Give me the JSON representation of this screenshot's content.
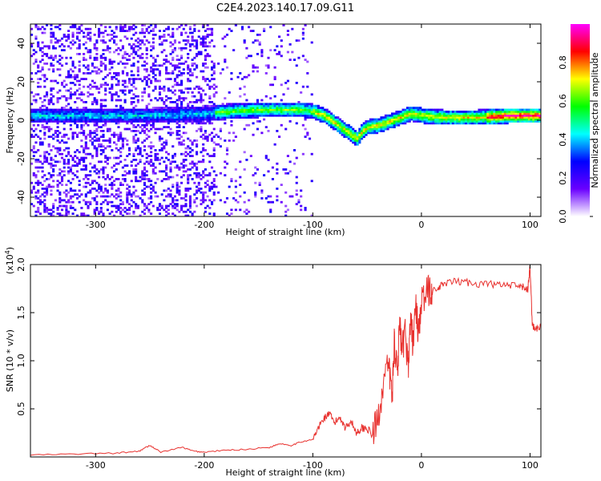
{
  "title": "C2E4.2023.140.17.09.G11",
  "chart_data": [
    {
      "type": "heatmap",
      "title": "C2E4.2023.140.17.09.G11",
      "xlabel": "Height of straight line (km)",
      "ylabel": "Frequency (Hz)",
      "xlim": [
        -360,
        110
      ],
      "ylim": [
        -50,
        50
      ],
      "x_ticks": [
        -300,
        -200,
        -100,
        0,
        100
      ],
      "y_ticks": [
        -40,
        -20,
        0,
        20,
        40
      ],
      "colorbar": {
        "label": "Normalized spectral amplitude",
        "range": [
          0.0,
          1.0
        ],
        "ticks": [
          "0.0",
          "0.2",
          "0.4",
          "0.6",
          "0.8"
        ],
        "colormap": [
          "#ffffff",
          "#6a00ff",
          "#0000ff",
          "#00ffff",
          "#00ff00",
          "#ffff00",
          "#ff0000",
          "#ff00ff"
        ]
      },
      "ridge": {
        "x": [
          -360,
          -300,
          -250,
          -200,
          -180,
          -150,
          -120,
          -110,
          -100,
          -90,
          -80,
          -70,
          -60,
          -55,
          -50,
          -40,
          -30,
          -20,
          -10,
          0,
          20,
          50,
          80,
          100,
          110
        ],
        "y": [
          2,
          2,
          2,
          3,
          4,
          5,
          5,
          5,
          4,
          2,
          -2,
          -6,
          -10,
          -6,
          -4,
          -3,
          -1,
          1,
          3,
          2,
          1,
          1,
          2,
          2,
          2
        ]
      }
    },
    {
      "type": "line",
      "xlabel": "Height of straight line (km)",
      "ylabel": "SNR (10 * v/v)",
      "y_multiplier": "(x10",
      "y_multiplier_exp": "4",
      "xlim": [
        -360,
        110
      ],
      "ylim": [
        0,
        2.0
      ],
      "x_ticks": [
        -300,
        -200,
        -100,
        0,
        100
      ],
      "y_ticks": [
        "0.5",
        "1.0",
        "1.5",
        "2.0"
      ],
      "series": [
        {
          "color": "#e8312e",
          "x": [
            -360,
            -320,
            -280,
            -260,
            -250,
            -240,
            -220,
            -210,
            -200,
            -180,
            -160,
            -140,
            -130,
            -120,
            -110,
            -100,
            -95,
            -90,
            -85,
            -80,
            -75,
            -70,
            -65,
            -60,
            -55,
            -50,
            -45,
            -40,
            -35,
            -30,
            -27,
            -25,
            -22,
            -20,
            -18,
            -15,
            -12,
            -10,
            -8,
            -5,
            -3,
            0,
            5,
            8,
            10,
            15,
            20,
            30,
            40,
            50,
            60,
            70,
            80,
            90,
            95,
            98,
            100,
            102,
            104,
            110
          ],
          "y": [
            0.02,
            0.03,
            0.04,
            0.06,
            0.12,
            0.05,
            0.1,
            0.06,
            0.05,
            0.07,
            0.08,
            0.1,
            0.14,
            0.12,
            0.16,
            0.18,
            0.3,
            0.4,
            0.45,
            0.35,
            0.42,
            0.3,
            0.38,
            0.25,
            0.3,
            0.3,
            0.22,
            0.4,
            0.78,
            0.95,
            0.62,
            1.2,
            0.9,
            1.4,
            1.05,
            1.3,
            0.95,
            1.45,
            1.2,
            1.55,
            1.3,
            1.6,
            1.7,
            1.75,
            1.72,
            1.74,
            1.8,
            1.82,
            1.82,
            1.8,
            1.8,
            1.79,
            1.78,
            1.77,
            1.76,
            1.74,
            1.98,
            1.4,
            1.32,
            1.36
          ]
        }
      ]
    }
  ]
}
